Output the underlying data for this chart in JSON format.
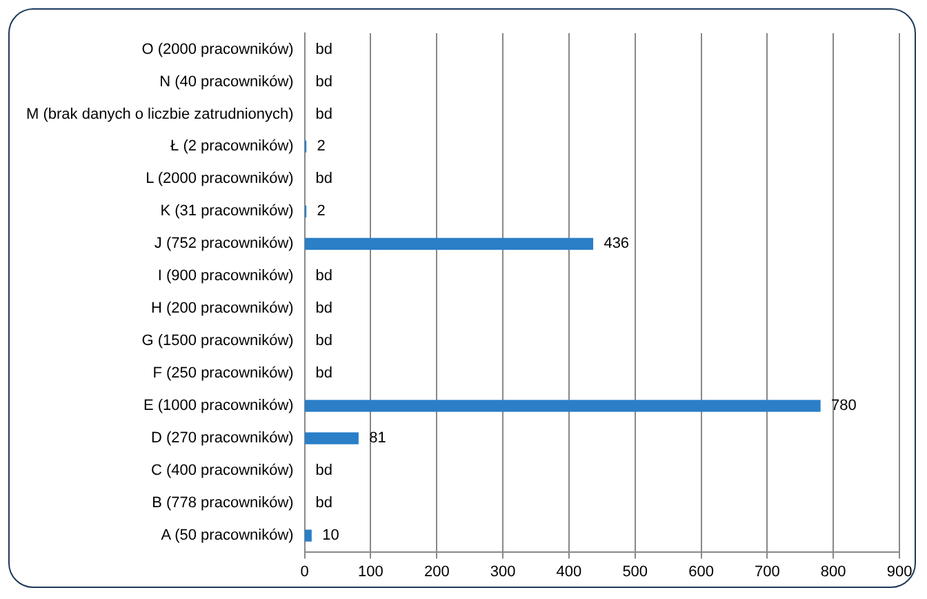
{
  "chart_data": {
    "type": "bar",
    "orientation": "horizontal",
    "categories": [
      "O (2000 pracowników)",
      "N (40 pracowników)",
      "M (brak danych o liczbie zatrudnionych)",
      "Ł (2 pracowników)",
      "L (2000 pracowników)",
      "K (31 pracowników)",
      "J (752 pracowników)",
      "I (900 pracowników)",
      "H (200 pracowników)",
      "G (1500 pracowników)",
      "F (250 pracowników)",
      "E (1000 pracowników)",
      "D (270 pracowników)",
      "C (400 pracowników)",
      "B (778 pracowników)",
      "A (50 pracowników)"
    ],
    "values": [
      null,
      null,
      null,
      2,
      null,
      2,
      436,
      null,
      null,
      null,
      null,
      780,
      81,
      null,
      null,
      10
    ],
    "value_labels": [
      "bd",
      "bd",
      "bd",
      "2",
      "bd",
      "2",
      "436",
      "bd",
      "bd",
      "bd",
      "bd",
      "780",
      "81",
      "bd",
      "bd",
      "10"
    ],
    "color": "#2a7fc7",
    "xlim": [
      0,
      900
    ],
    "xticks": [
      0,
      100,
      200,
      300,
      400,
      500,
      600,
      700,
      800,
      900
    ],
    "grid": "x"
  }
}
